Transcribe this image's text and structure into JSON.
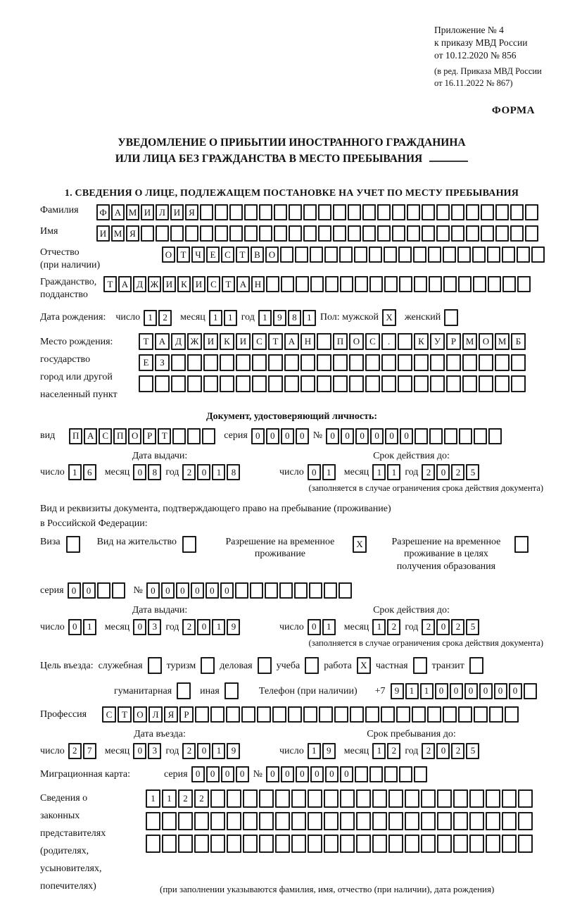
{
  "colors": {
    "ink": "#111111",
    "box_border": "#1a1a1a",
    "page_bg": "#ffffff"
  },
  "header": {
    "appendix_line1": "Приложение № 4",
    "appendix_line2": "к приказу МВД России",
    "appendix_line3": "от 10.12.2020 № 856",
    "amendment_line1": "(в ред. Приказа МВД России",
    "amendment_line2": "от 16.11.2022 № 867)",
    "form_label": "ФОРМА"
  },
  "title": {
    "line1": "УВЕДОМЛЕНИЕ О ПРИБЫТИИ ИНОСТРАННОГО ГРАЖДАНИНА",
    "line2": "ИЛИ ЛИЦА БЕЗ ГРАЖДАНСТВА В МЕСТО ПРЕБЫВАНИЯ"
  },
  "labels": {
    "day": "число",
    "month": "месяц",
    "year": "год",
    "series": "серия",
    "number": "№",
    "issue_date": "Дата выдачи:",
    "valid_until": "Срок действия до:",
    "entry_date": "Дата въезда:",
    "stay_until": "Срок пребывания до:",
    "validity_note": "(заполняется в случае ограничения срока действия документа)"
  },
  "section1": {
    "heading": "1. СВЕДЕНИЯ О ЛИЦЕ, ПОДЛЕЖАЩЕМ ПОСТАНОВКЕ НА УЧЕТ ПО МЕСТУ ПРЕБЫВАНИЯ",
    "surname": {
      "label": "Фамилия",
      "count": 30,
      "value": "ФАМИЛИЯ"
    },
    "given_name": {
      "label": "Имя",
      "count": 30,
      "value": "ИМЯ"
    },
    "patronymic": {
      "label_line1": "Отчество",
      "label_line2": "(при наличии)",
      "count": 26,
      "value": "ОТЧЕСТВО"
    },
    "citizenship": {
      "label_line1": "Гражданство,",
      "label_line2": "подданство",
      "count": 29,
      "value": "ТАДЖИКИСТАН"
    },
    "birth_date": {
      "label": "Дата рождения:",
      "day": {
        "count": 2,
        "value": "12"
      },
      "month": {
        "count": 2,
        "value": "11"
      },
      "year": {
        "count": 4,
        "value": "1981"
      }
    },
    "sex": {
      "label_male": "Пол: мужской",
      "male": {
        "count": 1,
        "value": "X"
      },
      "label_female": "женский",
      "female": {
        "count": 1,
        "value": ""
      }
    },
    "birth_place": {
      "label_line1": "Место рождения:",
      "label_line2": "государство",
      "label_line3": "город или другой",
      "label_line4": "населенный пункт",
      "row1": {
        "count": 24,
        "value": "ТАДЖИКИСТАН ПОС. КУРМОМБ"
      },
      "row2": {
        "count": 24,
        "value": "ЕЗ"
      },
      "row3": {
        "count": 24,
        "value": ""
      }
    }
  },
  "identity_doc": {
    "heading": "Документ, удостоверяющий личность:",
    "kind": {
      "label": "вид",
      "count": 10,
      "value": "ПАСПОРТ"
    },
    "series": {
      "count": 4,
      "value": "0000"
    },
    "number": {
      "count": 12,
      "value": "000000"
    },
    "issue_date": {
      "day": {
        "count": 2,
        "value": "16"
      },
      "month": {
        "count": 2,
        "value": "08"
      },
      "year": {
        "count": 4,
        "value": "2018"
      }
    },
    "valid_until": {
      "day": {
        "count": 2,
        "value": "01"
      },
      "month": {
        "count": 2,
        "value": "11"
      },
      "year": {
        "count": 4,
        "value": "2025"
      }
    }
  },
  "residence_doc": {
    "intro_line1": "Вид и реквизиты документа, подтверждающего право на пребывание (проживание)",
    "intro_line2": "в Российской Федерации:",
    "options": [
      {
        "label": "Виза",
        "box": {
          "count": 1,
          "value": ""
        }
      },
      {
        "label": "Вид на жительство",
        "box": {
          "count": 1,
          "value": ""
        }
      },
      {
        "label": "Разрешение на временное проживание",
        "box": {
          "count": 1,
          "value": "X"
        }
      },
      {
        "label": "Разрешение на временное проживание в целях получения образования",
        "box": {
          "count": 1,
          "value": ""
        }
      }
    ],
    "series": {
      "count": 4,
      "value": "00"
    },
    "number": {
      "count": 14,
      "value": "000000"
    },
    "issue_date": {
      "day": {
        "count": 2,
        "value": "01"
      },
      "month": {
        "count": 2,
        "value": "03"
      },
      "year": {
        "count": 4,
        "value": "2019"
      }
    },
    "valid_until": {
      "day": {
        "count": 2,
        "value": "01"
      },
      "month": {
        "count": 2,
        "value": "12"
      },
      "year": {
        "count": 4,
        "value": "2025"
      }
    }
  },
  "entry": {
    "purpose_label": "Цель въезда:",
    "purposes": [
      {
        "label": "служебная",
        "box": {
          "count": 1,
          "value": ""
        }
      },
      {
        "label": "туризм",
        "box": {
          "count": 1,
          "value": ""
        }
      },
      {
        "label": "деловая",
        "box": {
          "count": 1,
          "value": ""
        }
      },
      {
        "label": "учеба",
        "box": {
          "count": 1,
          "value": ""
        }
      },
      {
        "label": "работа",
        "box": {
          "count": 1,
          "value": "X"
        }
      },
      {
        "label": "частная",
        "box": {
          "count": 1,
          "value": ""
        }
      },
      {
        "label": "транзит",
        "box": {
          "count": 1,
          "value": ""
        }
      },
      {
        "label": "гуманитарная",
        "box": {
          "count": 1,
          "value": ""
        }
      },
      {
        "label": "иная",
        "box": {
          "count": 1,
          "value": ""
        }
      }
    ],
    "phone": {
      "label": "Телефон (при наличии)",
      "prefix": "+7",
      "count": 10,
      "value": "911000000"
    },
    "profession": {
      "label": "Профессия",
      "count": 27,
      "value": "СТОЛЯР"
    },
    "entry_date": {
      "day": {
        "count": 2,
        "value": "27"
      },
      "month": {
        "count": 2,
        "value": "03"
      },
      "year": {
        "count": 4,
        "value": "2019"
      }
    },
    "stay_until": {
      "day": {
        "count": 2,
        "value": "19"
      },
      "month": {
        "count": 2,
        "value": "12"
      },
      "year": {
        "count": 4,
        "value": "2025"
      }
    }
  },
  "migration_card": {
    "label": "Миграционная карта:",
    "series": {
      "count": 4,
      "value": "0000"
    },
    "number": {
      "count": 11,
      "value": "000000"
    }
  },
  "legal_representatives": {
    "label_line1": "Сведения о",
    "label_line2": "законных",
    "label_line3": "представителях",
    "label_line4": "(родителях,",
    "label_line5": "усыновителях,",
    "label_line6": "попечителях)",
    "row1": {
      "count": 24,
      "value": "1122"
    },
    "row2": {
      "count": 24,
      "value": ""
    },
    "row3": {
      "count": 24,
      "value": ""
    },
    "note": "(при заполнении указываются фамилия, имя, отчество (при наличии), дата рождения)"
  }
}
